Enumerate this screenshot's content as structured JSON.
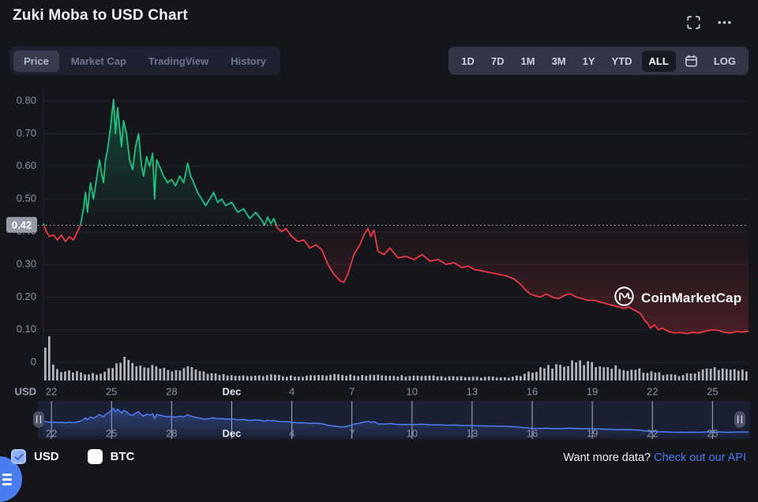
{
  "header": {
    "title": "Zuki Moba to USD Chart"
  },
  "toolbar": {
    "tabs": [
      {
        "label": "Price",
        "active": true
      },
      {
        "label": "Market Cap",
        "active": false
      },
      {
        "label": "TradingView",
        "active": false
      },
      {
        "label": "History",
        "active": false
      }
    ],
    "ranges": [
      {
        "label": "1D",
        "active": false
      },
      {
        "label": "7D",
        "active": false
      },
      {
        "label": "1M",
        "active": false
      },
      {
        "label": "3M",
        "active": false
      },
      {
        "label": "1Y",
        "active": false
      },
      {
        "label": "YTD",
        "active": false
      },
      {
        "label": "ALL",
        "active": true
      }
    ],
    "log_label": "LOG"
  },
  "watermark": {
    "label": "CoinMarketCap"
  },
  "footer": {
    "checkboxes": [
      {
        "label": "USD",
        "checked": true
      },
      {
        "label": "BTC",
        "checked": false
      }
    ],
    "promo_text": "Want more data?",
    "link_text": "Check out our API"
  },
  "chart_data": {
    "type": "line",
    "title": "Zuki Moba to USD Chart",
    "y_axis_unit": "USD",
    "reference_price": 0.42,
    "reference_label": "0.42",
    "ylim": [
      0,
      0.85
    ],
    "x_range_days": 35.2,
    "grid": true,
    "colors": {
      "above_reference": "#16c784",
      "below_reference": "#ea3943",
      "volume": "#c9cdd8",
      "brush_line": "#4f7df2",
      "axis_text": "#8c93a6"
    },
    "yticks": [
      {
        "v": 0.8,
        "label": "0.80"
      },
      {
        "v": 0.7,
        "label": "0.70"
      },
      {
        "v": 0.6,
        "label": "0.60"
      },
      {
        "v": 0.5,
        "label": "0.50"
      },
      {
        "v": 0.4,
        "label": "0.40"
      },
      {
        "v": 0.3,
        "label": "0.30"
      },
      {
        "v": 0.2,
        "label": "0.20"
      },
      {
        "v": 0.1,
        "label": "0.10"
      },
      {
        "v": 0,
        "label": "0"
      }
    ],
    "xticks": [
      {
        "day": 0.4,
        "label": "22",
        "bold": false
      },
      {
        "day": 3.4,
        "label": "25",
        "bold": false
      },
      {
        "day": 6.4,
        "label": "28",
        "bold": false
      },
      {
        "day": 9.4,
        "label": "Dec",
        "bold": true
      },
      {
        "day": 12.4,
        "label": "4",
        "bold": false
      },
      {
        "day": 15.4,
        "label": "7",
        "bold": false
      },
      {
        "day": 18.4,
        "label": "10",
        "bold": false
      },
      {
        "day": 21.4,
        "label": "13",
        "bold": false
      },
      {
        "day": 24.4,
        "label": "16",
        "bold": false
      },
      {
        "day": 27.4,
        "label": "19",
        "bold": false
      },
      {
        "day": 30.4,
        "label": "22",
        "bold": false
      },
      {
        "day": 33.4,
        "label": "25",
        "bold": false
      }
    ],
    "series": [
      {
        "name": "Price (USD)",
        "points": [
          [
            0,
            0.425
          ],
          [
            0.15,
            0.4
          ],
          [
            0.3,
            0.385
          ],
          [
            0.5,
            0.39
          ],
          [
            0.7,
            0.375
          ],
          [
            0.9,
            0.39
          ],
          [
            1.1,
            0.37
          ],
          [
            1.3,
            0.385
          ],
          [
            1.5,
            0.375
          ],
          [
            1.7,
            0.4
          ],
          [
            1.85,
            0.42
          ],
          [
            2,
            0.47
          ],
          [
            2.1,
            0.52
          ],
          [
            2.2,
            0.46
          ],
          [
            2.35,
            0.55
          ],
          [
            2.5,
            0.5
          ],
          [
            2.65,
            0.56
          ],
          [
            2.8,
            0.62
          ],
          [
            2.9,
            0.58
          ],
          [
            3,
            0.55
          ],
          [
            3.1,
            0.62
          ],
          [
            3.2,
            0.65
          ],
          [
            3.35,
            0.72
          ],
          [
            3.5,
            0.805
          ],
          [
            3.6,
            0.7
          ],
          [
            3.7,
            0.78
          ],
          [
            3.8,
            0.72
          ],
          [
            3.9,
            0.66
          ],
          [
            4,
            0.74
          ],
          [
            4.15,
            0.7
          ],
          [
            4.3,
            0.62
          ],
          [
            4.45,
            0.59
          ],
          [
            4.6,
            0.66
          ],
          [
            4.75,
            0.7
          ],
          [
            4.9,
            0.6
          ],
          [
            5,
            0.57
          ],
          [
            5.15,
            0.63
          ],
          [
            5.3,
            0.6
          ],
          [
            5.45,
            0.64
          ],
          [
            5.55,
            0.5
          ],
          [
            5.65,
            0.62
          ],
          [
            5.8,
            0.6
          ],
          [
            6,
            0.57
          ],
          [
            6.2,
            0.55
          ],
          [
            6.4,
            0.56
          ],
          [
            6.6,
            0.54
          ],
          [
            6.8,
            0.57
          ],
          [
            7,
            0.55
          ],
          [
            7.2,
            0.61
          ],
          [
            7.35,
            0.57
          ],
          [
            7.5,
            0.55
          ],
          [
            7.7,
            0.52
          ],
          [
            7.9,
            0.5
          ],
          [
            8.1,
            0.48
          ],
          [
            8.3,
            0.5
          ],
          [
            8.5,
            0.52
          ],
          [
            8.7,
            0.49
          ],
          [
            8.9,
            0.5
          ],
          [
            9.1,
            0.48
          ],
          [
            9.4,
            0.49
          ],
          [
            9.7,
            0.46
          ],
          [
            10,
            0.47
          ],
          [
            10.3,
            0.44
          ],
          [
            10.6,
            0.46
          ],
          [
            10.9,
            0.435
          ],
          [
            11.05,
            0.42
          ],
          [
            11.2,
            0.445
          ],
          [
            11.35,
            0.425
          ],
          [
            11.5,
            0.44
          ],
          [
            11.7,
            0.41
          ],
          [
            11.9,
            0.4
          ],
          [
            12.1,
            0.41
          ],
          [
            12.4,
            0.385
          ],
          [
            12.7,
            0.37
          ],
          [
            13,
            0.375
          ],
          [
            13.3,
            0.35
          ],
          [
            13.6,
            0.36
          ],
          [
            13.9,
            0.345
          ],
          [
            14.2,
            0.3
          ],
          [
            14.5,
            0.27
          ],
          [
            14.8,
            0.25
          ],
          [
            15,
            0.245
          ],
          [
            15.2,
            0.27
          ],
          [
            15.5,
            0.33
          ],
          [
            15.8,
            0.36
          ],
          [
            16,
            0.39
          ],
          [
            16.2,
            0.41
          ],
          [
            16.35,
            0.385
          ],
          [
            16.5,
            0.405
          ],
          [
            16.7,
            0.34
          ],
          [
            17,
            0.33
          ],
          [
            17.3,
            0.35
          ],
          [
            17.7,
            0.32
          ],
          [
            18.1,
            0.325
          ],
          [
            18.5,
            0.315
          ],
          [
            18.9,
            0.33
          ],
          [
            19.3,
            0.31
          ],
          [
            19.7,
            0.315
          ],
          [
            20.1,
            0.3
          ],
          [
            20.5,
            0.305
          ],
          [
            20.9,
            0.29
          ],
          [
            21.2,
            0.295
          ],
          [
            21.5,
            0.285
          ],
          [
            21.9,
            0.28
          ],
          [
            22.3,
            0.275
          ],
          [
            22.7,
            0.27
          ],
          [
            23.1,
            0.265
          ],
          [
            23.5,
            0.255
          ],
          [
            23.8,
            0.24
          ],
          [
            24.1,
            0.22
          ],
          [
            24.3,
            0.21
          ],
          [
            24.5,
            0.205
          ],
          [
            24.8,
            0.2
          ],
          [
            25.1,
            0.21
          ],
          [
            25.4,
            0.2
          ],
          [
            25.7,
            0.195
          ],
          [
            26,
            0.205
          ],
          [
            26.3,
            0.21
          ],
          [
            26.6,
            0.2
          ],
          [
            26.9,
            0.195
          ],
          [
            27.2,
            0.19
          ],
          [
            27.5,
            0.19
          ],
          [
            27.8,
            0.185
          ],
          [
            28.1,
            0.18
          ],
          [
            28.4,
            0.175
          ],
          [
            28.7,
            0.17
          ],
          [
            29,
            0.165
          ],
          [
            29.2,
            0.17
          ],
          [
            29.5,
            0.16
          ],
          [
            29.8,
            0.15
          ],
          [
            30,
            0.13
          ],
          [
            30.15,
            0.12
          ],
          [
            30.3,
            0.105
          ],
          [
            30.5,
            0.115
          ],
          [
            30.7,
            0.1
          ],
          [
            30.9,
            0.105
          ],
          [
            31.2,
            0.095
          ],
          [
            31.5,
            0.09
          ],
          [
            31.8,
            0.092
          ],
          [
            32.1,
            0.088
          ],
          [
            32.4,
            0.092
          ],
          [
            32.7,
            0.09
          ],
          [
            33,
            0.095
          ],
          [
            33.4,
            0.1
          ],
          [
            33.7,
            0.098
          ],
          [
            34,
            0.092
          ],
          [
            34.3,
            0.09
          ],
          [
            34.6,
            0.095
          ],
          [
            34.9,
            0.093
          ],
          [
            35.2,
            0.095
          ]
        ]
      }
    ],
    "volume": {
      "bars": 178,
      "envelope": [
        [
          0,
          0.95
        ],
        [
          0.2,
          1.0
        ],
        [
          0.45,
          0.3
        ],
        [
          0.8,
          0.2
        ],
        [
          1.2,
          0.22
        ],
        [
          1.6,
          0.2
        ],
        [
          2,
          0.17
        ],
        [
          2.4,
          0.15
        ],
        [
          2.8,
          0.18
        ],
        [
          3.1,
          0.22
        ],
        [
          3.4,
          0.3
        ],
        [
          3.7,
          0.42
        ],
        [
          4,
          0.5
        ],
        [
          4.2,
          0.46
        ],
        [
          4.5,
          0.32
        ],
        [
          5,
          0.28
        ],
        [
          5.4,
          0.3
        ],
        [
          5.8,
          0.26
        ],
        [
          6.2,
          0.22
        ],
        [
          6.6,
          0.25
        ],
        [
          7,
          0.28
        ],
        [
          7.4,
          0.26
        ],
        [
          7.8,
          0.24
        ],
        [
          8.2,
          0.18
        ],
        [
          8.6,
          0.14
        ],
        [
          9,
          0.13
        ],
        [
          9.4,
          0.12
        ],
        [
          9.8,
          0.13
        ],
        [
          10.2,
          0.12
        ],
        [
          10.6,
          0.11
        ],
        [
          11,
          0.12
        ],
        [
          11.4,
          0.13
        ],
        [
          11.8,
          0.11
        ],
        [
          12.2,
          0.1
        ],
        [
          12.6,
          0.11
        ],
        [
          13,
          0.1
        ],
        [
          13.4,
          0.11
        ],
        [
          13.8,
          0.12
        ],
        [
          14.2,
          0.11
        ],
        [
          14.6,
          0.13
        ],
        [
          15,
          0.12
        ],
        [
          15.4,
          0.13
        ],
        [
          15.8,
          0.12
        ],
        [
          16.2,
          0.11
        ],
        [
          16.6,
          0.12
        ],
        [
          17,
          0.11
        ],
        [
          17.4,
          0.1
        ],
        [
          17.8,
          0.11
        ],
        [
          18.2,
          0.1
        ],
        [
          18.6,
          0.1
        ],
        [
          19,
          0.09
        ],
        [
          19.4,
          0.1
        ],
        [
          19.8,
          0.09
        ],
        [
          20.2,
          0.08
        ],
        [
          20.6,
          0.09
        ],
        [
          21,
          0.08
        ],
        [
          21.4,
          0.08
        ],
        [
          21.8,
          0.07
        ],
        [
          22.2,
          0.08
        ],
        [
          22.6,
          0.07
        ],
        [
          23,
          0.07
        ],
        [
          23.4,
          0.08
        ],
        [
          23.8,
          0.1
        ],
        [
          24.2,
          0.16
        ],
        [
          24.6,
          0.24
        ],
        [
          25,
          0.3
        ],
        [
          25.4,
          0.33
        ],
        [
          25.8,
          0.35
        ],
        [
          26.2,
          0.37
        ],
        [
          26.6,
          0.4
        ],
        [
          27,
          0.42
        ],
        [
          27.4,
          0.38
        ],
        [
          27.8,
          0.33
        ],
        [
          28.2,
          0.35
        ],
        [
          28.6,
          0.3
        ],
        [
          29,
          0.28
        ],
        [
          29.4,
          0.26
        ],
        [
          29.8,
          0.24
        ],
        [
          30.2,
          0.21
        ],
        [
          30.6,
          0.18
        ],
        [
          31,
          0.15
        ],
        [
          31.4,
          0.13
        ],
        [
          31.8,
          0.12
        ],
        [
          32.2,
          0.14
        ],
        [
          32.6,
          0.18
        ],
        [
          33,
          0.23
        ],
        [
          33.4,
          0.27
        ],
        [
          33.8,
          0.3
        ],
        [
          34.2,
          0.31
        ],
        [
          34.6,
          0.26
        ],
        [
          35.2,
          0.2
        ]
      ]
    },
    "brush": {
      "range_selected": "ALL"
    }
  }
}
